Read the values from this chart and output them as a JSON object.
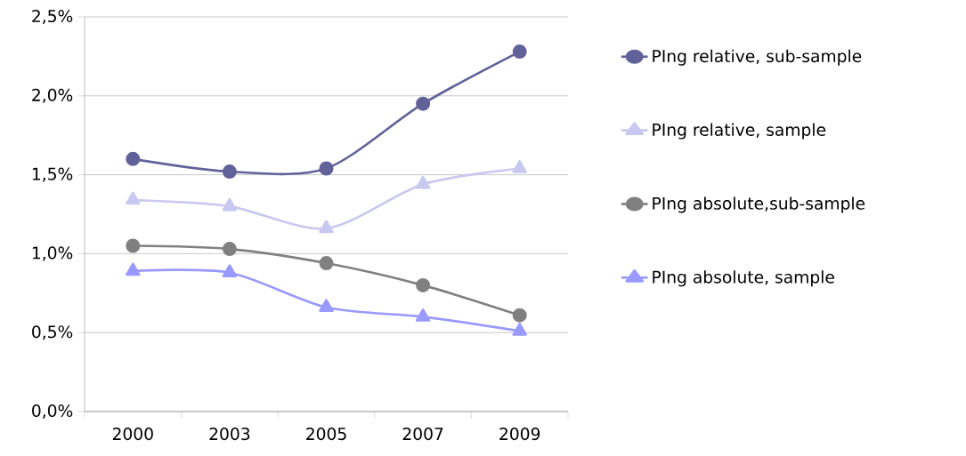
{
  "chart_data": {
    "type": "line",
    "categories": [
      "2000",
      "2003",
      "2005",
      "2007",
      "2009"
    ],
    "ylim": [
      0,
      2.5
    ],
    "yticks": [
      {
        "value": 0,
        "label": "0,0%"
      },
      {
        "value": 0.5,
        "label": "0,5%"
      },
      {
        "value": 1,
        "label": "1,0%"
      },
      {
        "value": 1.5,
        "label": "1,5%"
      },
      {
        "value": 2,
        "label": "2,0%"
      },
      {
        "value": 2.5,
        "label": "2,5%"
      }
    ],
    "grid": "y",
    "legend": "right",
    "line_style": "solid",
    "series": [
      {
        "name": "PIng relative, sub-sample",
        "color": "#62629a",
        "marker": "circle",
        "values": [
          1.6,
          1.52,
          1.54,
          1.95,
          2.28
        ]
      },
      {
        "name": "PIng relative, sample",
        "color": "#c8c8f0",
        "marker": "triangle",
        "values": [
          1.34,
          1.3,
          1.16,
          1.44,
          1.54
        ]
      },
      {
        "name": "PIng absolute,sub-sample",
        "color": "#808080",
        "marker": "circle",
        "values": [
          1.05,
          1.03,
          0.94,
          0.8,
          0.61
        ]
      },
      {
        "name": "PIng absolute, sample",
        "color": "#9999ff",
        "marker": "triangle",
        "values": [
          0.89,
          0.88,
          0.66,
          0.6,
          0.51
        ]
      }
    ]
  }
}
